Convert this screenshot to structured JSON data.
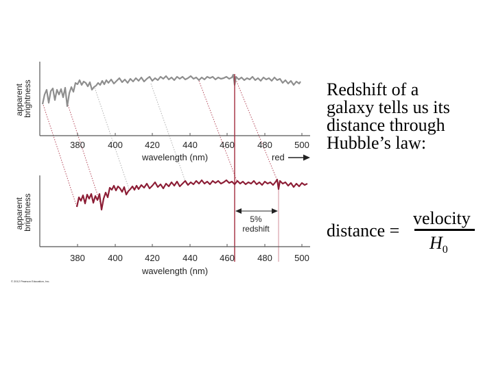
{
  "colors": {
    "top_spectrum": "#8e8e8e",
    "bottom_spectrum": "#8c1d35",
    "marker_line": "#a22a3c",
    "connector_top": "#b0b0b0",
    "connector_bottom": "#b4485a"
  },
  "figure": {
    "top_panel": {
      "ylabel_line1": "apparent",
      "ylabel_line2": "brightness",
      "xlabel": "wavelength (nm)",
      "ticks": [
        "380",
        "400",
        "420",
        "440",
        "460",
        "480",
        "500"
      ],
      "red_label": "red"
    },
    "bottom_panel": {
      "ylabel_line1": "apparent",
      "ylabel_line2": "brightness",
      "xlabel": "wavelength (nm)",
      "ticks": [
        "380",
        "400",
        "420",
        "440",
        "460",
        "480",
        "500"
      ],
      "shift_label_line1": "5%",
      "shift_label_line2": "redshift"
    },
    "credit": "© 2012 Pearson Education, Inc."
  },
  "caption": {
    "lines": [
      "Redshift of a",
      "galaxy tells us its",
      "distance through",
      "Hubble’s law:"
    ]
  },
  "formula": {
    "lhs": "distance =",
    "numerator": "velocity",
    "denominator": "H",
    "denominator_sub": "0"
  }
}
